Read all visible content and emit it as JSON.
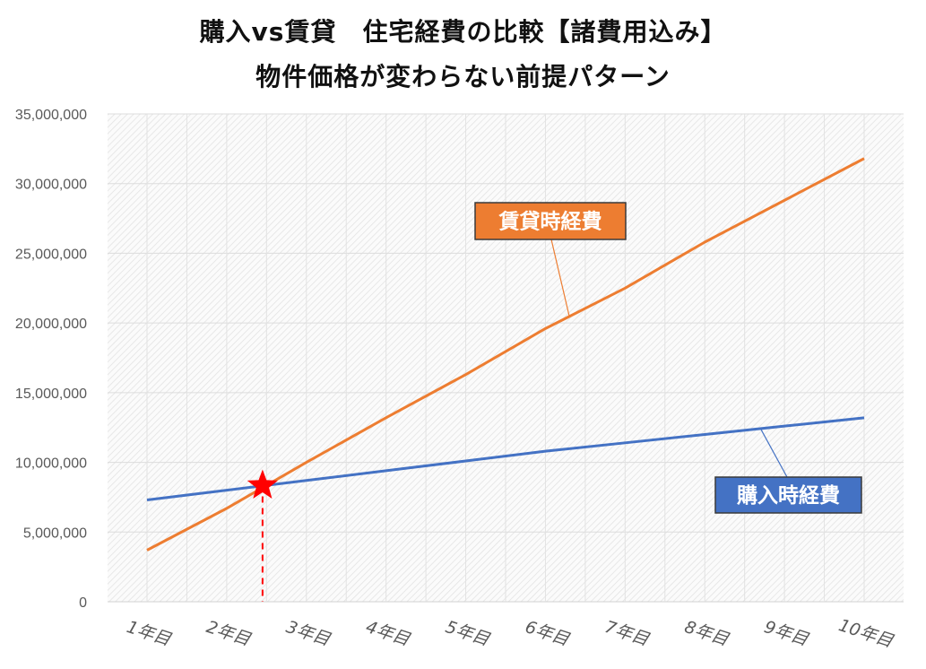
{
  "chart_data": {
    "type": "line",
    "title": "購入vs賃貸　住宅経費の比較【諸費用込み】",
    "subtitle": "物件価格が変わらない前提パターン",
    "categories": [
      "1年目",
      "2年目",
      "3年目",
      "4年目",
      "5年目",
      "6年目",
      "7年目",
      "8年目",
      "9年目",
      "10年目"
    ],
    "yticks": [
      "0",
      "5,000,000",
      "10,000,000",
      "15,000,000",
      "20,000,000",
      "25,000,000",
      "30,000,000",
      "35,000,000"
    ],
    "ylim": [
      0,
      35000000
    ],
    "grid": true,
    "series": [
      {
        "name": "賃貸時経費",
        "color": "#ED7D31",
        "label_bg": "#ED7D31",
        "values": [
          3700000,
          6700000,
          10000000,
          13200000,
          16300000,
          19600000,
          22500000,
          25800000,
          28800000,
          31800000
        ]
      },
      {
        "name": "購入時経費",
        "color": "#4472C4",
        "label_bg": "#4472C4",
        "values": [
          7300000,
          8000000,
          8700000,
          9400000,
          10100000,
          10800000,
          11400000,
          12000000,
          12600000,
          13200000
        ]
      }
    ],
    "crossover_marker": {
      "x": 2.45,
      "y": 8400000,
      "color": "#FF0000",
      "shape": "star-icon"
    }
  }
}
